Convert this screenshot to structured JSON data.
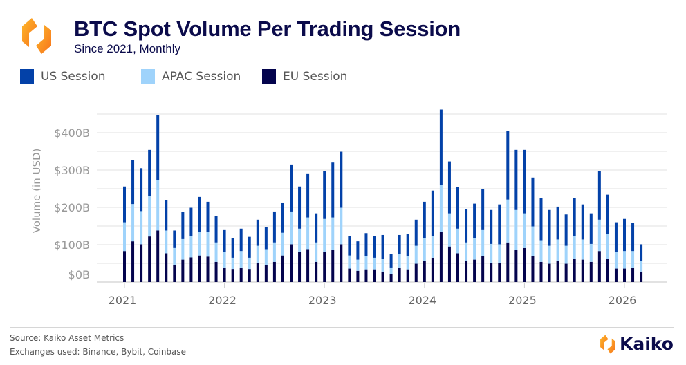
{
  "header": {
    "title": "BTC Spot Volume Per Trading Session",
    "subtitle": "Since 2021, Monthly",
    "logo_text": "Kaiko"
  },
  "footer": {
    "source": "Source: Kaiko Asset Metrics",
    "exchanges": "Exchanges used: Binance, Bybit, Coinbase",
    "brand": "Kaiko"
  },
  "colors": {
    "us": "#0341a8",
    "apac": "#9fd3fb",
    "eu": "#04044d",
    "title": "#0b0b4b",
    "grid": "#ececec"
  },
  "chart_data": {
    "type": "bar",
    "stacked": true,
    "title": "BTC Spot Volume Per Trading Session",
    "subtitle": "Since 2021, Monthly",
    "xlabel": "",
    "ylabel": "Volume (in USD)",
    "ylim": [
      0,
      450
    ],
    "y_unit": "billion USD",
    "y_ticks": [
      0,
      100,
      200,
      300,
      400
    ],
    "y_tick_labels": [
      "$0B",
      "$100B",
      "$200B",
      "$300B",
      "$400B"
    ],
    "x_tick_labels": [
      "2021",
      "2022",
      "2023",
      "2024",
      "2025",
      "2026"
    ],
    "grid": true,
    "legend_position": "top-left",
    "start_month": "2021-01",
    "legend": [
      "US Session",
      "APAC Session",
      "EU Session"
    ],
    "series": [
      {
        "name": "EU Session",
        "key": "eu",
        "values": [
          83,
          109,
          101,
          122,
          138,
          77,
          45,
          60,
          66,
          71,
          68,
          54,
          39,
          35,
          39,
          35,
          51,
          45,
          54,
          71,
          101,
          80,
          88,
          54,
          80,
          86,
          101,
          36,
          30,
          34,
          34,
          28,
          22,
          39,
          34,
          49,
          56,
          65,
          135,
          95,
          77,
          56,
          60,
          69,
          51,
          51,
          106,
          86,
          91,
          69,
          54,
          49,
          56,
          49,
          62,
          60,
          54,
          83,
          62,
          36,
          36,
          39,
          28
        ]
      },
      {
        "name": "APAC Session",
        "key": "apac",
        "values": [
          77,
          100,
          89,
          108,
          136,
          61,
          46,
          55,
          57,
          64,
          67,
          52,
          41,
          30,
          44,
          30,
          46,
          43,
          52,
          61,
          88,
          63,
          85,
          52,
          89,
          87,
          98,
          35,
          30,
          35,
          31,
          34,
          17,
          36,
          35,
          48,
          61,
          58,
          125,
          89,
          66,
          50,
          57,
          72,
          51,
          50,
          115,
          107,
          93,
          80,
          58,
          48,
          58,
          48,
          61,
          54,
          48,
          84,
          67,
          44,
          47,
          44,
          28
        ]
      },
      {
        "name": "US Session",
        "key": "us",
        "values": [
          96,
          118,
          115,
          124,
          173,
          81,
          47,
          73,
          76,
          93,
          80,
          70,
          61,
          52,
          60,
          56,
          70,
          59,
          83,
          81,
          126,
          113,
          118,
          78,
          128,
          147,
          150,
          52,
          49,
          62,
          58,
          64,
          36,
          51,
          60,
          70,
          98,
          122,
          202,
          139,
          111,
          89,
          93,
          109,
          91,
          107,
          183,
          161,
          170,
          131,
          113,
          96,
          88,
          84,
          102,
          94,
          82,
          130,
          105,
          80,
          86,
          75,
          45
        ]
      }
    ]
  }
}
